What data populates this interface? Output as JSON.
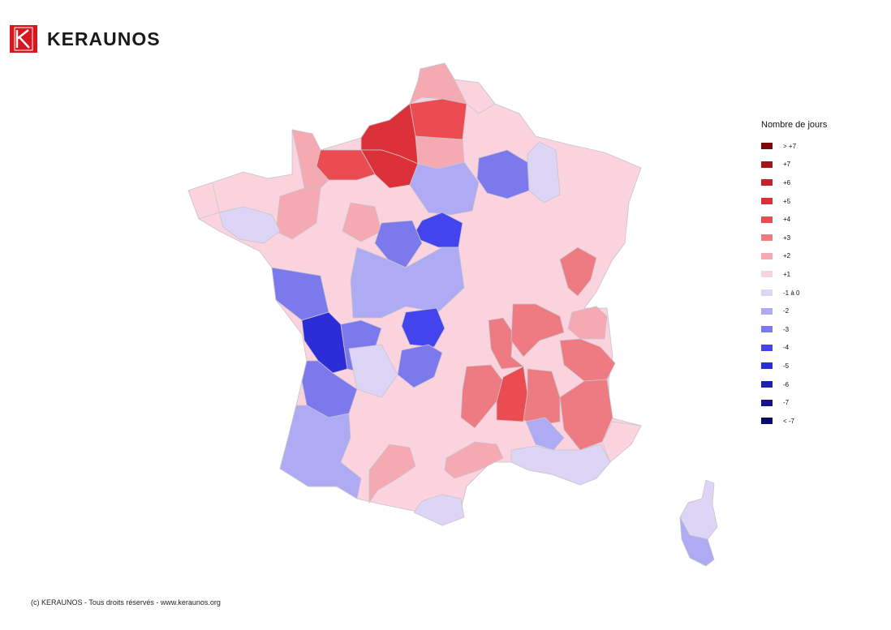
{
  "brand": {
    "name": "KERAUNOS",
    "color": "#d7161d"
  },
  "legend": {
    "title": "Nombre de jours",
    "items": [
      {
        "label": "> +7",
        "color": "#7a0a0e"
      },
      {
        "label": "+7",
        "color": "#a3141a"
      },
      {
        "label": "+6",
        "color": "#c4232a"
      },
      {
        "label": "+5",
        "color": "#dc3138"
      },
      {
        "label": "+4",
        "color": "#ea4c52"
      },
      {
        "label": "+3",
        "color": "#ef7b82"
      },
      {
        "label": "+2",
        "color": "#f5a9b2"
      },
      {
        "label": "+1",
        "color": "#fad3de"
      },
      {
        "label": "-1 à 0",
        "color": "#ddd5f5"
      },
      {
        "label": "-2",
        "color": "#aeaaf4"
      },
      {
        "label": "-3",
        "color": "#7b79ec"
      },
      {
        "label": "-4",
        "color": "#4444ee"
      },
      {
        "label": "-5",
        "color": "#2d2dd8"
      },
      {
        "label": "-6",
        "color": "#1f1fb0"
      },
      {
        "label": "-7",
        "color": "#13138e"
      },
      {
        "label": "< -7",
        "color": "#0a0a6e"
      }
    ]
  },
  "map": {
    "regions": [
      {
        "name": "nord",
        "value": "+2"
      },
      {
        "name": "pas-de-calais-coast",
        "value": "+1"
      },
      {
        "name": "somme",
        "value": "+4"
      },
      {
        "name": "seine-maritime",
        "value": "+5"
      },
      {
        "name": "eure",
        "value": "+5"
      },
      {
        "name": "calvados",
        "value": "+4"
      },
      {
        "name": "manche",
        "value": "+2"
      },
      {
        "name": "oise",
        "value": "+2"
      },
      {
        "name": "aisne",
        "value": "+1"
      },
      {
        "name": "marne",
        "value": "-3"
      },
      {
        "name": "ardennes-meuse",
        "value": "-1 à 0"
      },
      {
        "name": "paris-area",
        "value": "-2"
      },
      {
        "name": "loiret",
        "value": "-4"
      },
      {
        "name": "loir-et-cher",
        "value": "-3"
      },
      {
        "name": "cher-indre",
        "value": "-2"
      },
      {
        "name": "creuse",
        "value": "-4"
      },
      {
        "name": "vendee",
        "value": "-3"
      },
      {
        "name": "charente-maritime",
        "value": "-5"
      },
      {
        "name": "charente",
        "value": "-3"
      },
      {
        "name": "correze",
        "value": "-3"
      },
      {
        "name": "gironde",
        "value": "-3"
      },
      {
        "name": "landes-pyrenees",
        "value": "-2"
      },
      {
        "name": "bretagne",
        "value": "+1"
      },
      {
        "name": "morbihan",
        "value": "-1 à 0"
      },
      {
        "name": "mayenne",
        "value": "+2"
      },
      {
        "name": "sarthe",
        "value": "+2"
      },
      {
        "name": "doubs",
        "value": "+3"
      },
      {
        "name": "loire-rhone",
        "value": "+3"
      },
      {
        "name": "haute-loire",
        "value": "+3"
      },
      {
        "name": "cantal",
        "value": "+3"
      },
      {
        "name": "ardeche",
        "value": "+4"
      },
      {
        "name": "drome",
        "value": "+3"
      },
      {
        "name": "isere",
        "value": "+3"
      },
      {
        "name": "savoie",
        "value": "+2"
      },
      {
        "name": "hautes-alpes",
        "value": "+3"
      },
      {
        "name": "vaucluse",
        "value": "-2"
      },
      {
        "name": "provence",
        "value": "-1 à 0"
      },
      {
        "name": "alpes-maritimes",
        "value": "+1"
      },
      {
        "name": "herault",
        "value": "+2"
      },
      {
        "name": "aude",
        "value": "-1 à 0"
      },
      {
        "name": "haute-garonne",
        "value": "+2"
      },
      {
        "name": "dordogne-lot",
        "value": "-1 à 0"
      },
      {
        "name": "corse-nord",
        "value": "-1 à 0"
      },
      {
        "name": "corse-sud",
        "value": "-2"
      }
    ]
  },
  "footer": "(c) KERAUNOS - Tous droits réservés - www.keraunos.org"
}
